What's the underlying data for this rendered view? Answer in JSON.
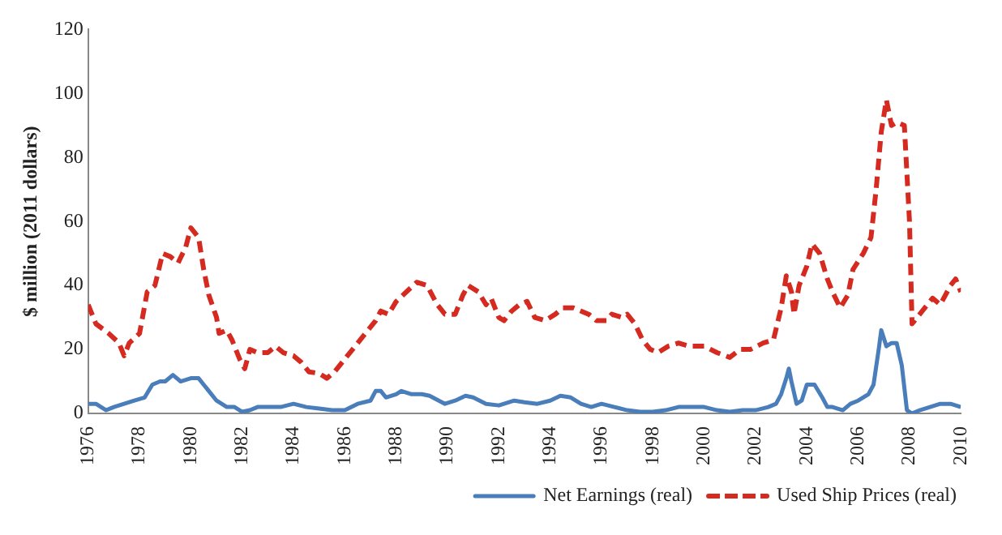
{
  "chart_data": {
    "type": "line",
    "ylabel": "$ million (2011 dollars)",
    "xlim": [
      1976,
      2010
    ],
    "xticks": [
      1976,
      1978,
      1980,
      1982,
      1984,
      1986,
      1988,
      1990,
      1992,
      1994,
      1996,
      1998,
      2000,
      2002,
      2004,
      2006,
      2008,
      2010
    ],
    "ylim": [
      0,
      120
    ],
    "yticks": [
      0,
      20,
      40,
      60,
      80,
      100,
      120
    ],
    "grid": false,
    "legend": "bottom",
    "marker": "none",
    "series": [
      {
        "name": "Net Earnings (real)",
        "color": "#4a7ebb",
        "line_style": "solid",
        "x": [
          1976.0,
          1976.3,
          1976.7,
          1977.0,
          1977.4,
          1977.8,
          1978.2,
          1978.5,
          1978.8,
          1979.0,
          1979.3,
          1979.6,
          1980.0,
          1980.3,
          1980.6,
          1981.0,
          1981.4,
          1981.7,
          1982.0,
          1982.3,
          1982.6,
          1983.0,
          1983.5,
          1984.0,
          1984.5,
          1985.0,
          1985.5,
          1986.0,
          1986.5,
          1987.0,
          1987.2,
          1987.4,
          1987.6,
          1988.0,
          1988.2,
          1988.6,
          1989.0,
          1989.3,
          1989.9,
          1990.3,
          1990.7,
          1991.0,
          1991.5,
          1992.0,
          1992.6,
          1993.0,
          1993.5,
          1994.0,
          1994.4,
          1994.8,
          1995.2,
          1995.6,
          1996.0,
          1996.5,
          1997.0,
          1997.5,
          1998.0,
          1998.5,
          1999.0,
          1999.5,
          2000.0,
          2000.5,
          2001.0,
          2001.5,
          2002.0,
          2002.5,
          2002.8,
          2003.0,
          2003.2,
          2003.3,
          2003.4,
          2003.6,
          2003.8,
          2004.0,
          2004.3,
          2004.6,
          2004.8,
          2005.0,
          2005.4,
          2005.7,
          2006.0,
          2006.4,
          2006.6,
          2006.8,
          2006.9,
          2007.1,
          2007.3,
          2007.5,
          2007.7,
          2007.9,
          2008.1,
          2008.4,
          2008.8,
          2009.2,
          2009.6,
          2010.0
        ],
        "values": [
          3,
          3,
          1,
          2,
          3,
          4,
          5,
          9,
          10,
          10,
          12,
          10,
          11,
          11,
          8,
          4,
          2,
          2,
          0.5,
          1,
          2,
          2,
          2,
          3,
          2,
          1.5,
          1,
          1,
          3,
          4,
          7,
          7,
          5,
          6,
          7,
          6,
          6,
          5.5,
          3,
          4,
          5.5,
          5,
          3,
          2.5,
          4,
          3.5,
          3,
          4,
          5.5,
          5,
          3,
          2,
          3,
          2,
          1,
          0.5,
          0.5,
          1,
          2,
          2,
          2,
          1,
          0.5,
          1,
          1,
          2,
          3,
          6,
          11,
          14,
          10,
          3,
          4,
          9,
          9,
          5,
          2,
          2,
          1,
          3,
          4,
          6,
          9,
          20,
          26,
          21,
          22,
          22,
          15,
          1,
          0,
          1,
          2,
          3,
          3,
          2
        ]
      },
      {
        "name": "Used Ship Prices (real)",
        "color": "#d42a20",
        "line_style": "dashed",
        "x": [
          1976.0,
          1976.3,
          1976.8,
          1977.2,
          1977.4,
          1977.6,
          1978.0,
          1978.3,
          1978.6,
          1978.9,
          1979.2,
          1979.5,
          1979.8,
          1980.0,
          1980.3,
          1980.5,
          1980.7,
          1981.0,
          1981.1,
          1981.4,
          1981.6,
          1981.9,
          1982.1,
          1982.3,
          1982.6,
          1983.0,
          1983.3,
          1983.6,
          1984.0,
          1984.3,
          1984.6,
          1985.0,
          1985.3,
          1985.6,
          1986.0,
          1986.4,
          1986.8,
          1987.2,
          1987.4,
          1987.7,
          1988.0,
          1988.4,
          1988.8,
          1989.2,
          1989.6,
          1989.9,
          1990.3,
          1990.6,
          1990.8,
          1991.2,
          1991.5,
          1991.7,
          1992.0,
          1992.2,
          1992.5,
          1992.8,
          1993.1,
          1993.4,
          1993.8,
          1994.2,
          1994.5,
          1994.9,
          1995.2,
          1995.5,
          1995.8,
          1996.2,
          1996.4,
          1996.8,
          1997.0,
          1997.3,
          1997.6,
          1997.9,
          1998.2,
          1998.6,
          1999.0,
          1999.4,
          2000.0,
          2000.5,
          2001.0,
          2001.4,
          2001.8,
          2002.3,
          2002.7,
          2003.0,
          2003.2,
          2003.4,
          2003.5,
          2003.7,
          2004.0,
          2004.2,
          2004.5,
          2004.8,
          2005.0,
          2005.3,
          2005.6,
          2005.8,
          2006.2,
          2006.5,
          2006.7,
          2006.9,
          2007.1,
          2007.3,
          2007.5,
          2007.8,
          2008.0,
          2008.1,
          2008.5,
          2008.9,
          2009.2,
          2009.6,
          2009.8,
          2010.0
        ],
        "values": [
          34,
          28,
          25,
          22,
          18,
          22,
          25,
          38,
          40,
          50,
          49,
          47,
          52,
          58,
          55,
          45,
          37,
          30,
          25,
          26,
          23,
          17,
          14,
          20,
          19,
          19,
          21,
          19,
          18,
          16,
          13,
          12.5,
          11,
          13,
          17,
          21,
          25,
          29,
          32,
          31,
          35,
          38,
          41,
          40,
          34,
          31,
          31,
          37,
          40,
          38,
          34,
          36,
          30,
          29,
          32,
          34,
          35,
          30,
          29,
          31,
          33,
          33,
          32,
          31,
          29,
          29,
          31,
          30,
          31,
          28,
          23,
          20,
          19,
          21,
          22,
          21,
          21,
          19,
          17.5,
          20,
          20,
          22,
          23,
          33,
          43,
          38,
          31,
          40,
          46,
          53,
          50,
          42,
          38,
          33,
          37,
          45,
          50,
          55,
          70,
          88,
          98,
          90,
          91,
          90,
          60,
          28,
          32,
          36,
          34,
          40,
          42,
          38
        ]
      }
    ]
  }
}
